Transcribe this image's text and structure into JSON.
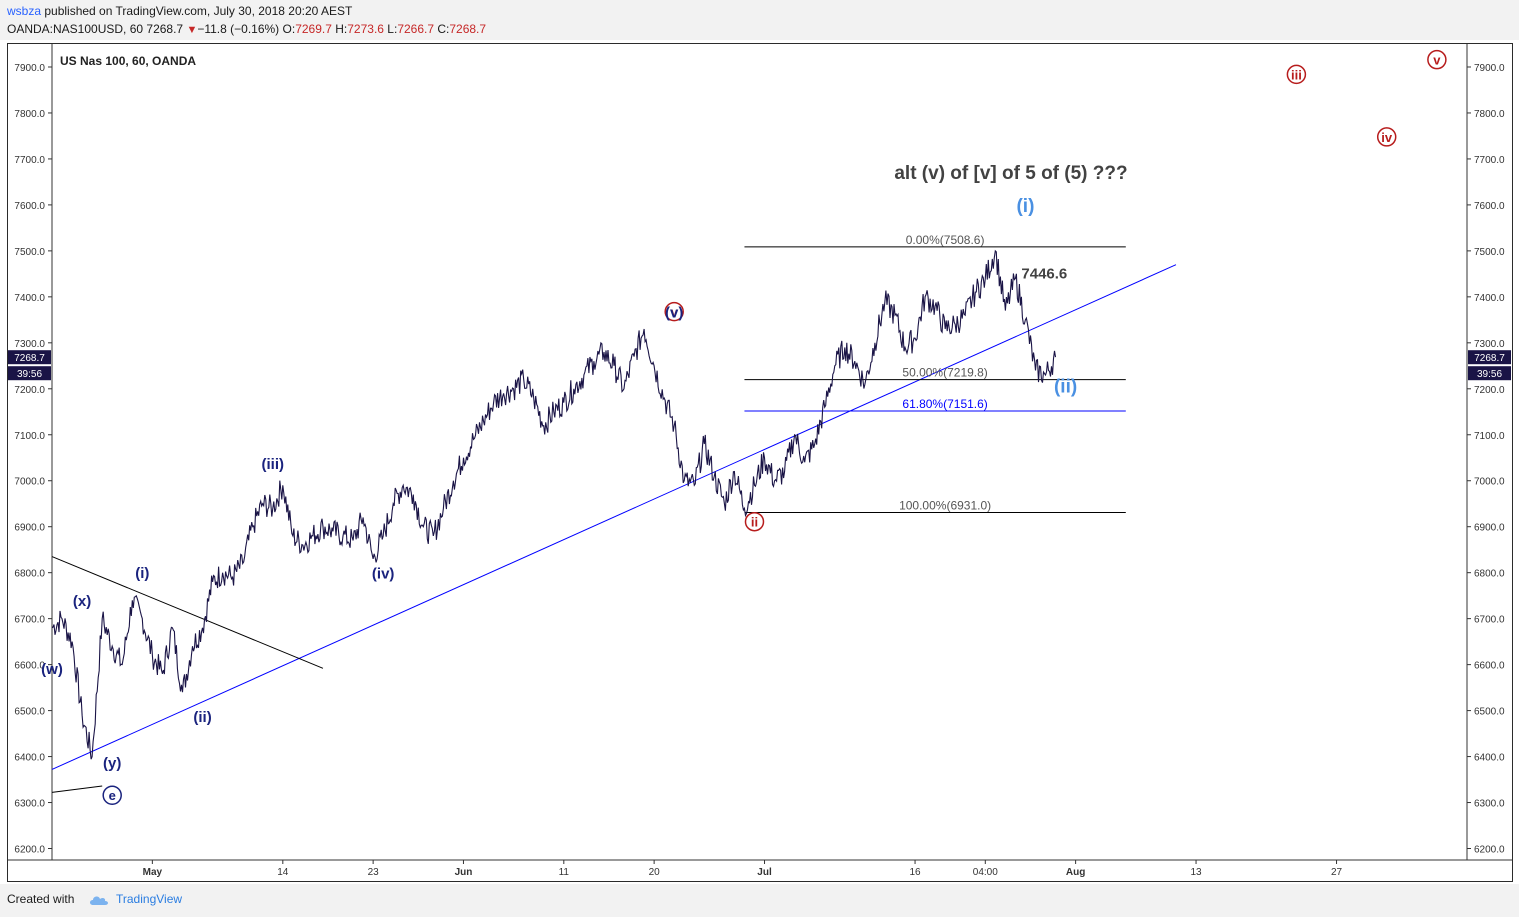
{
  "header": {
    "user": "wsbza",
    "published_text": " published on TradingView.com, July 30, 2018 20:20 AEST",
    "symbol": "OANDA:NAS100USD, 60",
    "last": "7268.7",
    "change": "−11.8 (−0.16%)",
    "o_label": "O:",
    "o": "7269.7",
    "h_label": "H:",
    "h": "7273.6",
    "l_label": "L:",
    "l": "7266.7",
    "c_label": "C:",
    "c": "7268.7"
  },
  "footer": {
    "created_with": "Created with",
    "brand": "TradingView"
  },
  "chart_data": {
    "type": "line",
    "title": "US Nas 100, 60, OANDA",
    "annotation": "alt (v) of [v] of 5 of (5) ???",
    "price_label": "7446.6",
    "current_price": "7268.7",
    "countdown": "39:56",
    "ylim": [
      6175,
      7950
    ],
    "y_ticks": [
      "7900.0",
      "7800.0",
      "7700.0",
      "7600.0",
      "7500.0",
      "7400.0",
      "7300.0",
      "7200.0",
      "7100.0",
      "7000.0",
      "6900.0",
      "6800.0",
      "6700.0",
      "6600.0",
      "6500.0",
      "6400.0",
      "6300.0",
      "6200.0"
    ],
    "x_ticks": [
      "May",
      "14",
      "23",
      "Jun",
      "11",
      "20",
      "Jul",
      "16",
      "04:00",
      "Aug",
      "13",
      "27"
    ],
    "x_range": [
      "2018-04-21",
      "2018-09-09"
    ],
    "fib_levels": [
      {
        "label": "0.00%(7508.6)",
        "price": 7508.6,
        "color": "#000000",
        "text_color": "#555555"
      },
      {
        "label": "50.00%(7219.8)",
        "price": 7219.8,
        "color": "#000000",
        "text_color": "#555555"
      },
      {
        "label": "61.80%(7151.6)",
        "price": 7151.6,
        "color": "#0000ff",
        "text_color": "#0000ff"
      },
      {
        "label": "100.00%(6931.0)",
        "price": 6931.0,
        "color": "#000000",
        "text_color": "#555555"
      }
    ],
    "fib_start": "2018-06-29",
    "fib_end": "2018-08-06",
    "trendlines": [
      {
        "color": "#0000ff",
        "from": [
          "2018-04-21",
          6372
        ],
        "to": [
          "2018-08-11",
          7470
        ]
      },
      {
        "color": "#000000",
        "from": [
          "2018-04-21",
          6835
        ],
        "to": [
          "2018-05-18",
          6592
        ]
      },
      {
        "color": "#000000",
        "from": [
          "2018-04-21",
          6322
        ],
        "to": [
          "2018-04-26",
          6336
        ]
      }
    ],
    "series": [
      {
        "color": "#1a1446",
        "x": [
          "2018-04-21",
          "2018-04-22",
          "2018-04-23",
          "2018-04-24",
          "2018-04-25",
          "2018-04-26",
          "2018-04-27",
          "2018-04-28",
          "2018-04-29",
          "2018-04-30",
          "2018-05-01",
          "2018-05-02",
          "2018-05-03",
          "2018-05-04",
          "2018-05-05",
          "2018-05-06",
          "2018-05-07",
          "2018-05-08",
          "2018-05-09",
          "2018-05-10",
          "2018-05-11",
          "2018-05-12",
          "2018-05-13",
          "2018-05-14",
          "2018-05-15",
          "2018-05-16",
          "2018-05-17",
          "2018-05-18",
          "2018-05-19",
          "2018-05-20",
          "2018-05-21",
          "2018-05-22",
          "2018-05-23",
          "2018-05-24",
          "2018-05-25",
          "2018-05-26",
          "2018-05-27",
          "2018-05-28",
          "2018-05-29",
          "2018-05-30",
          "2018-05-31",
          "2018-06-01",
          "2018-06-02",
          "2018-06-03",
          "2018-06-04",
          "2018-06-05",
          "2018-06-06",
          "2018-06-07",
          "2018-06-08",
          "2018-06-09",
          "2018-06-10",
          "2018-06-11",
          "2018-06-12",
          "2018-06-13",
          "2018-06-14",
          "2018-06-15",
          "2018-06-16",
          "2018-06-17",
          "2018-06-18",
          "2018-06-19",
          "2018-06-20",
          "2018-06-21",
          "2018-06-22",
          "2018-06-23",
          "2018-06-24",
          "2018-06-25",
          "2018-06-26",
          "2018-06-27",
          "2018-06-28",
          "2018-06-29",
          "2018-06-30",
          "2018-07-01",
          "2018-07-02",
          "2018-07-03",
          "2018-07-04",
          "2018-07-05",
          "2018-07-06",
          "2018-07-07",
          "2018-07-08",
          "2018-07-09",
          "2018-07-10",
          "2018-07-11",
          "2018-07-12",
          "2018-07-13",
          "2018-07-14",
          "2018-07-15",
          "2018-07-16",
          "2018-07-17",
          "2018-07-18",
          "2018-07-19",
          "2018-07-20",
          "2018-07-21",
          "2018-07-22",
          "2018-07-23",
          "2018-07-24",
          "2018-07-25",
          "2018-07-26",
          "2018-07-27",
          "2018-07-28",
          "2018-07-29",
          "2018-07-30"
        ],
        "values": [
          6680,
          6700,
          6650,
          6490,
          6400,
          6700,
          6640,
          6600,
          6740,
          6700,
          6620,
          6580,
          6680,
          6540,
          6640,
          6680,
          6780,
          6800,
          6790,
          6820,
          6900,
          6950,
          6940,
          6990,
          6880,
          6860,
          6880,
          6900,
          6890,
          6880,
          6870,
          6920,
          6830,
          6880,
          6950,
          6990,
          6970,
          6900,
          6880,
          6940,
          7000,
          7050,
          7090,
          7130,
          7170,
          7190,
          7200,
          7220,
          7180,
          7120,
          7150,
          7170,
          7200,
          7230,
          7260,
          7280,
          7250,
          7200,
          7270,
          7330,
          7250,
          7180,
          7120,
          7000,
          6990,
          7080,
          7010,
          6950,
          7020,
          6940,
          6990,
          7050,
          7000,
          7020,
          7100,
          7040,
          7080,
          7160,
          7250,
          7290,
          7260,
          7210,
          7300,
          7390,
          7360,
          7290,
          7310,
          7400,
          7380,
          7330,
          7340,
          7360,
          7410,
          7440,
          7500,
          7370,
          7440,
          7350,
          7240,
          7230,
          7269
        ]
      }
    ],
    "wave_labels": [
      {
        "text": "(w)",
        "x": "2018-04-21",
        "y": 6580,
        "color": "#1a237e",
        "style": "plain"
      },
      {
        "text": "(x)",
        "x": "2018-04-24",
        "y": 6727,
        "color": "#1a237e",
        "style": "plain"
      },
      {
        "text": "(y)",
        "x": "2018-04-27",
        "y": 6375,
        "color": "#1a237e",
        "style": "plain"
      },
      {
        "text": "e",
        "x": "2018-04-27",
        "y": 6305,
        "color": "#1a237e",
        "style": "circle"
      },
      {
        "text": "(i)",
        "x": "2018-04-30",
        "y": 6788,
        "color": "#1a237e",
        "style": "plain"
      },
      {
        "text": "(ii)",
        "x": "2018-05-06",
        "y": 6475,
        "color": "#1a237e",
        "style": "plain"
      },
      {
        "text": "(iii)",
        "x": "2018-05-13",
        "y": 7025,
        "color": "#1a237e",
        "style": "plain"
      },
      {
        "text": "(iv)",
        "x": "2018-05-24",
        "y": 6787,
        "color": "#1a237e",
        "style": "plain"
      },
      {
        "text": "v",
        "x": "2018-06-22",
        "y": 7357,
        "color": "#b71c1c",
        "style": "circle"
      },
      {
        "text": "(v)",
        "x": "2018-06-22",
        "y": 7355,
        "color": "#1a237e",
        "style": "plain"
      },
      {
        "text": "ii",
        "x": "2018-06-30",
        "y": 6900,
        "color": "#b71c1c",
        "style": "circle"
      },
      {
        "text": "(i)",
        "x": "2018-07-27",
        "y": 7585,
        "color": "#4a90e2",
        "style": "plain"
      },
      {
        "text": "(ii)",
        "x": "2018-07-31",
        "y": 7192,
        "color": "#4a90e2",
        "style": "plain"
      },
      {
        "text": "iii",
        "x": "2018-08-23",
        "y": 7873,
        "color": "#b71c1c",
        "style": "circle"
      },
      {
        "text": "iv",
        "x": "2018-09-01",
        "y": 7737,
        "color": "#b71c1c",
        "style": "circle"
      },
      {
        "text": "v",
        "x": "2018-09-06",
        "y": 7905,
        "color": "#b71c1c",
        "style": "circle"
      }
    ]
  }
}
